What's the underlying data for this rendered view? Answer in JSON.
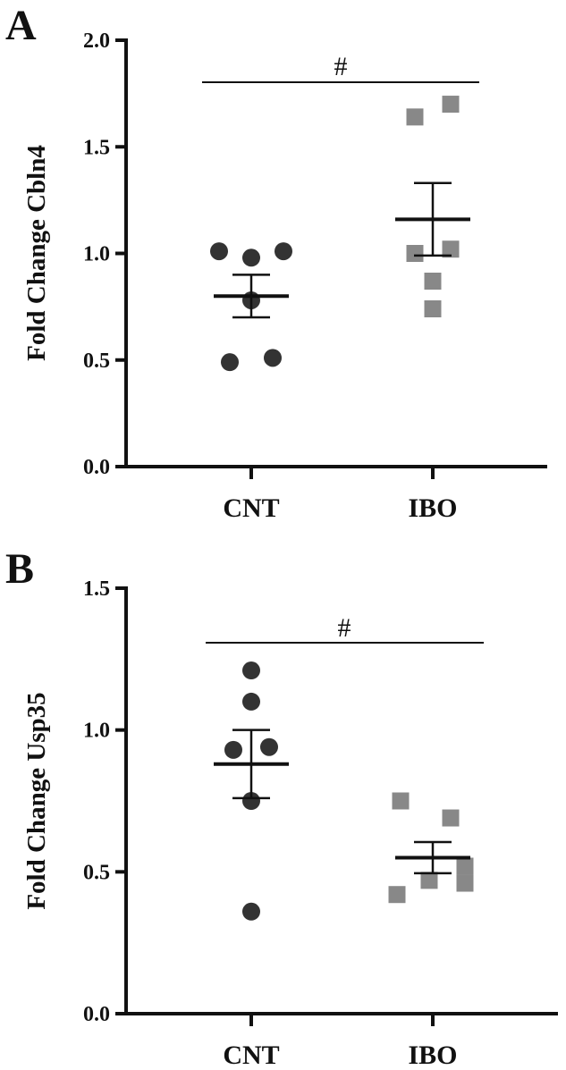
{
  "chart_data": [
    {
      "panel_label": "A",
      "type": "scatter",
      "ylabel": "Fold Change Cbln4",
      "ylim": [
        0,
        2.0
      ],
      "yticks": [
        "0.0",
        "0.5",
        "1.0",
        "1.5",
        "2.0"
      ],
      "categories": [
        "CNT",
        "IBO"
      ],
      "significance": "#",
      "series": [
        {
          "category": "CNT",
          "marker": "circle",
          "color": "#333333",
          "points": [
            {
              "x": -0.18,
              "y": 1.01
            },
            {
              "x": 0.0,
              "y": 0.98
            },
            {
              "x": 0.18,
              "y": 1.01
            },
            {
              "x": 0.0,
              "y": 0.78
            },
            {
              "x": -0.12,
              "y": 0.49
            },
            {
              "x": 0.12,
              "y": 0.51
            }
          ],
          "mean": 0.8,
          "sem": 0.1
        },
        {
          "category": "IBO",
          "marker": "square",
          "color": "#888888",
          "points": [
            {
              "x": -0.1,
              "y": 1.64
            },
            {
              "x": 0.1,
              "y": 1.7
            },
            {
              "x": -0.1,
              "y": 1.0
            },
            {
              "x": 0.1,
              "y": 1.02
            },
            {
              "x": 0.0,
              "y": 0.87
            },
            {
              "x": 0.0,
              "y": 0.74
            }
          ],
          "mean": 1.16,
          "sem": 0.17
        }
      ]
    },
    {
      "panel_label": "B",
      "type": "scatter",
      "ylabel": "Fold Change Usp35",
      "ylim": [
        0,
        1.5
      ],
      "yticks": [
        "0.0",
        "0.5",
        "1.0",
        "1.5"
      ],
      "categories": [
        "CNT",
        "IBO"
      ],
      "significance": "#",
      "series": [
        {
          "category": "CNT",
          "marker": "circle",
          "color": "#333333",
          "points": [
            {
              "x": 0.0,
              "y": 1.21
            },
            {
              "x": 0.0,
              "y": 1.1
            },
            {
              "x": -0.1,
              "y": 0.93
            },
            {
              "x": 0.1,
              "y": 0.94
            },
            {
              "x": 0.0,
              "y": 0.75
            },
            {
              "x": 0.0,
              "y": 0.36
            }
          ],
          "mean": 0.88,
          "sem": 0.12
        },
        {
          "category": "IBO",
          "marker": "square",
          "color": "#888888",
          "points": [
            {
              "x": -0.18,
              "y": 0.75
            },
            {
              "x": 0.1,
              "y": 0.69
            },
            {
              "x": 0.18,
              "y": 0.52
            },
            {
              "x": -0.02,
              "y": 0.47
            },
            {
              "x": -0.2,
              "y": 0.42
            },
            {
              "x": 0.18,
              "y": 0.46
            }
          ],
          "mean": 0.55,
          "sem": 0.055
        }
      ]
    }
  ]
}
